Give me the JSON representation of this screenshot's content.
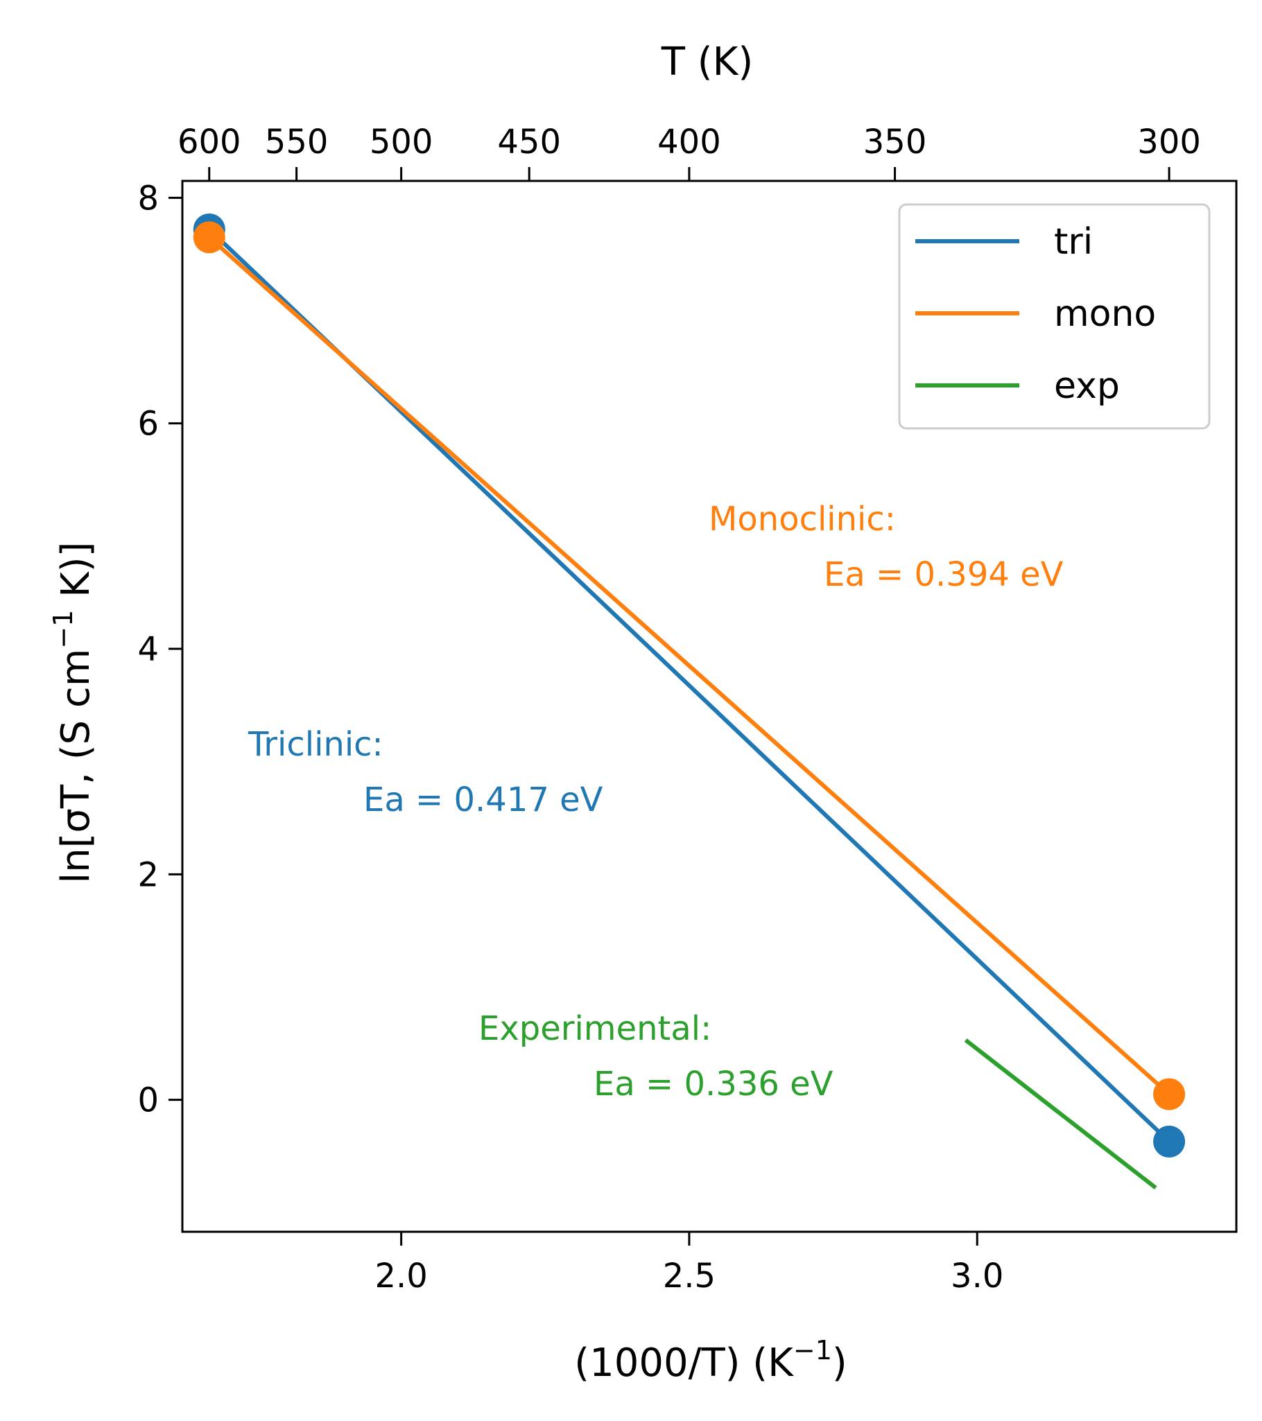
{
  "chart_data": {
    "type": "line",
    "xlabel": "(1000/T) (K",
    "xlabel_sup": "−1",
    "xlabel_end": ")",
    "ylabel": "ln[σT, (S cm",
    "ylabel_sup": "−1",
    "ylabel_end": " K)]",
    "top_xlabel": "T (K)",
    "xlim": [
      1.62,
      3.45
    ],
    "ylim": [
      -1.17,
      8.15
    ],
    "xticks": [
      2.0,
      2.5,
      3.0
    ],
    "xtick_labels": [
      "2.0",
      "2.5",
      "3.0"
    ],
    "yticks": [
      0,
      2,
      4,
      6,
      8
    ],
    "ytick_labels": [
      "0",
      "2",
      "4",
      "6",
      "8"
    ],
    "top_ticks_T": [
      600,
      550,
      500,
      450,
      400,
      350,
      300
    ],
    "top_tick_labels": [
      "600",
      "550",
      "500",
      "450",
      "400",
      "350",
      "300"
    ],
    "legend_position": "upper right",
    "series": [
      {
        "name": "tri",
        "color": "#1f77b4",
        "x": [
          1.6667,
          3.3333
        ],
        "y": [
          7.72,
          -0.37
        ],
        "markers": true
      },
      {
        "name": "mono",
        "color": "#ff7f0e",
        "x": [
          1.6667,
          3.3333
        ],
        "y": [
          7.65,
          0.05
        ],
        "markers": true
      },
      {
        "name": "exp",
        "color": "#2ca02c",
        "x": [
          2.98,
          3.31
        ],
        "y": [
          0.53,
          -0.78
        ],
        "markers": false
      }
    ],
    "annotations": [
      {
        "series": "mono",
        "line1": "Monoclinic:",
        "line2": "Ea = 0.394 eV",
        "color": "#ff7f0e"
      },
      {
        "series": "tri",
        "line1": "Triclinic:",
        "line2": "Ea = 0.417 eV",
        "color": "#1f77b4"
      },
      {
        "series": "exp",
        "line1": "Experimental:",
        "line2": "Ea = 0.336 eV",
        "color": "#2ca02c"
      }
    ]
  }
}
